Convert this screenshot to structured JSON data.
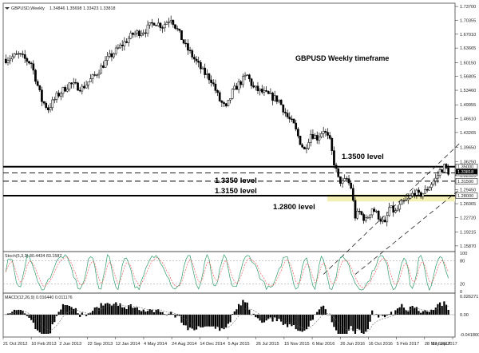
{
  "header": {
    "symbol": "GBPUSD,Weekly",
    "ohlc": "1.34846 1.35698 1.33423 1.33818"
  },
  "chart_data": {
    "type": "candlestick",
    "title": "GBPUSD Weekly timeframe",
    "price_axis": {
      "ticks": [
        "1.73700",
        "1.70355",
        "1.67010",
        "1.63665",
        "1.60150",
        "1.56805",
        "1.53460",
        "1.49955",
        "1.46610",
        "1.43265",
        "1.39650",
        "1.36250",
        "1.32920",
        "1.29450",
        "1.26065",
        "1.22720",
        "1.19215",
        "1.15870"
      ],
      "range": [
        1.145,
        1.745
      ],
      "current_price": "1.33818",
      "level_tags": [
        "1.35000",
        "1.33500",
        "1.31500",
        "1.28000"
      ]
    },
    "dates": [
      "21 Oct 2012",
      "10 Feb 2013",
      "2 Jun 2013",
      "22 Sep 2013",
      "12 Jan 2014",
      "4 May 2014",
      "24 Aug 2014",
      "14 Dec 2014",
      "5 Apr 2015",
      "26 Jul 2015",
      "15 Nov 2015",
      "6 Mar 2016",
      "26 Jun 2016",
      "16 Oct 2016",
      "5 Feb 2017",
      "28 May 2017",
      "17 Sep 2017"
    ],
    "price_path": [
      [
        0,
        1.61
      ],
      [
        6,
        1.62
      ],
      [
        12,
        1.6
      ],
      [
        17,
        1.51
      ],
      [
        20,
        1.49
      ],
      [
        24,
        1.52
      ],
      [
        30,
        1.55
      ],
      [
        36,
        1.54
      ],
      [
        42,
        1.57
      ],
      [
        48,
        1.61
      ],
      [
        54,
        1.64
      ],
      [
        60,
        1.67
      ],
      [
        66,
        1.68
      ],
      [
        70,
        1.7
      ],
      [
        74,
        1.69
      ],
      [
        78,
        1.71
      ],
      [
        81,
        1.68
      ],
      [
        85,
        1.64
      ],
      [
        89,
        1.61
      ],
      [
        93,
        1.58
      ],
      [
        97,
        1.56
      ],
      [
        101,
        1.51
      ],
      [
        104,
        1.49
      ],
      [
        107,
        1.53
      ],
      [
        110,
        1.55
      ],
      [
        114,
        1.57
      ],
      [
        117,
        1.54
      ],
      [
        121,
        1.53
      ],
      [
        125,
        1.52
      ],
      [
        129,
        1.51
      ],
      [
        133,
        1.47
      ],
      [
        136,
        1.45
      ],
      [
        139,
        1.41
      ],
      [
        141,
        1.39
      ],
      [
        144,
        1.43
      ],
      [
        147,
        1.42
      ],
      [
        150,
        1.44
      ],
      [
        153,
        1.41
      ],
      [
        155,
        1.36
      ],
      [
        157,
        1.32
      ],
      [
        159,
        1.31
      ],
      [
        161,
        1.32
      ],
      [
        163,
        1.3
      ],
      [
        165,
        1.23
      ],
      [
        167,
        1.24
      ],
      [
        170,
        1.22
      ],
      [
        173,
        1.25
      ],
      [
        176,
        1.23
      ],
      [
        179,
        1.21
      ],
      [
        181,
        1.25
      ],
      [
        184,
        1.24
      ],
      [
        187,
        1.26
      ],
      [
        190,
        1.27
      ],
      [
        193,
        1.29
      ],
      [
        195,
        1.28
      ],
      [
        198,
        1.29
      ],
      [
        201,
        1.31
      ],
      [
        203,
        1.32
      ],
      [
        205,
        1.34
      ],
      [
        207,
        1.35
      ],
      [
        209,
        1.338
      ]
    ],
    "annotations": {
      "level_1_3500": "1.3500 level",
      "level_1_3350": "1.3350 level",
      "level_1_3150": "1.3150 level",
      "level_1_2800": "1.2800 level"
    },
    "levels": [
      {
        "price": 1.35,
        "style": "solid-thick"
      },
      {
        "price": 1.335,
        "style": "dashed"
      },
      {
        "price": 1.315,
        "style": "dashed"
      },
      {
        "price": 1.28,
        "style": "solid-thick"
      }
    ],
    "support_zone": [
      1.266,
      1.283
    ],
    "channel": {
      "lower": [
        [
          165,
          1.09
        ],
        [
          215,
          1.298
        ]
      ],
      "upper": [
        [
          150,
          1.09
        ],
        [
          215,
          1.41
        ]
      ]
    },
    "stochastic": {
      "label": "Stoch(5,3,3) 80.4434 83.1587",
      "ticks": [
        "100",
        "80",
        "20",
        "0"
      ],
      "main_color": "#2e9c6a",
      "signal_color": "#ff4444"
    },
    "macd": {
      "label": "MACD(12,26,9) 0.016440 0.011176",
      "ticks": [
        "0.026271",
        "0.00",
        "-0.041800"
      ]
    },
    "colors": {
      "candle": "#000000",
      "zone": "#f4f0b3",
      "grid": "#cccccc"
    }
  }
}
